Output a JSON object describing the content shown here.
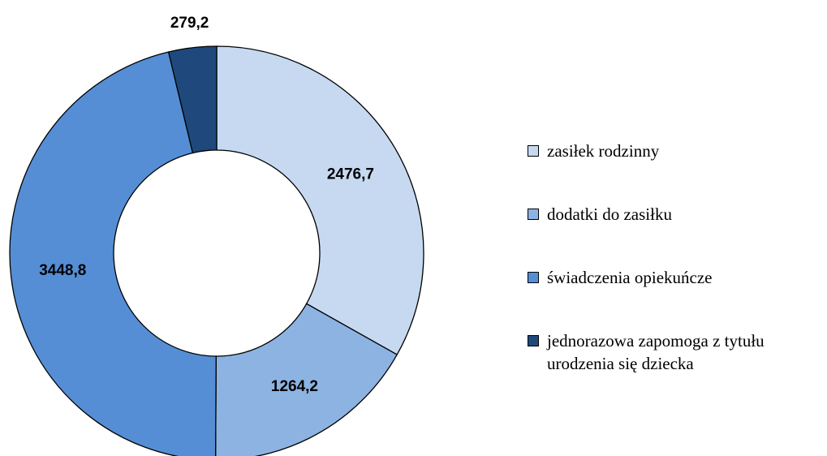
{
  "chart_data": {
    "type": "donut",
    "categories": [
      "zasiłek rodzinny",
      "dodatki do zasiłku",
      "świadczenia opiekuńcze",
      "jednorazowa zapomoga z tytułu urodzenia się dziecka"
    ],
    "values": [
      2476.7,
      1264.2,
      3448.8,
      279.2
    ],
    "value_labels": [
      "2476,7",
      "1264,2",
      "3448,8",
      "279,2"
    ],
    "colors": [
      "#c6d9f1",
      "#8db3e2",
      "#558ed5",
      "#1f497d"
    ],
    "legend": "right"
  }
}
